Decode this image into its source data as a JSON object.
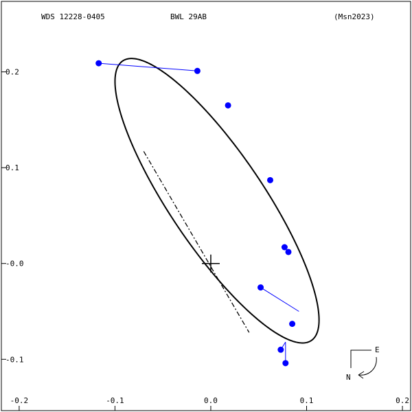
{
  "header": {
    "wds": "WDS 12228-0405",
    "name": "BWL  29AB",
    "ref": "(Msn2023)"
  },
  "compass": {
    "east": "E",
    "north": "N"
  },
  "chart_data": {
    "type": "scatter",
    "title": "",
    "xlabel": "",
    "ylabel": "",
    "xlim": [
      -0.22,
      0.21
    ],
    "ylim": [
      -0.155,
      0.275
    ],
    "x_ticks": [
      {
        "v": -0.2,
        "label": "-0.2"
      },
      {
        "v": -0.1,
        "label": "-0.1"
      },
      {
        "v": 0.0,
        "label": "0.0"
      },
      {
        "v": 0.1,
        "label": "0.1"
      },
      {
        "v": 0.2,
        "label": "0.2"
      }
    ],
    "y_ticks": [
      {
        "v": 0.2,
        "label": "0.2"
      },
      {
        "v": 0.1,
        "label": "0.1"
      },
      {
        "v": 0.0,
        "label": "-0.0"
      },
      {
        "v": -0.1,
        "label": "-0.1"
      }
    ],
    "primary": [
      0.0,
      0.0
    ],
    "orbit_ellipse": {
      "center": [
        0.0065,
        0.0655
      ],
      "semi_major": 0.176,
      "semi_minor": 0.049,
      "rotation_deg": 124
    },
    "line_of_nodes": [
      [
        -0.07,
        0.117
      ],
      [
        0.04,
        -0.072
      ]
    ],
    "observations": [
      {
        "obs": [
          -0.117,
          0.209
        ],
        "model": [
          -0.014,
          0.201
        ]
      },
      {
        "obs": [
          -0.014,
          0.201
        ],
        "model": [
          -0.014,
          0.201
        ]
      },
      {
        "obs": [
          0.018,
          0.165
        ],
        "model": [
          0.018,
          0.165
        ]
      },
      {
        "obs": [
          0.062,
          0.087
        ],
        "model": [
          0.062,
          0.087
        ]
      },
      {
        "obs": [
          0.077,
          0.017
        ],
        "model": [
          0.077,
          0.017
        ]
      },
      {
        "obs": [
          0.081,
          0.012
        ],
        "model": [
          0.081,
          0.012
        ]
      },
      {
        "obs": [
          0.052,
          -0.025
        ],
        "model": [
          0.092,
          -0.05
        ]
      },
      {
        "obs": [
          0.085,
          -0.063
        ],
        "model": [
          0.085,
          -0.063
        ]
      },
      {
        "obs": [
          0.073,
          -0.09
        ],
        "model": [
          0.078,
          -0.082
        ]
      },
      {
        "obs": [
          0.078,
          -0.104
        ],
        "model": [
          0.078,
          -0.082
        ]
      }
    ],
    "grid": false,
    "colors": {
      "points": "#0000ff",
      "residuals": "#0000ff",
      "orbit": "#000000"
    }
  }
}
